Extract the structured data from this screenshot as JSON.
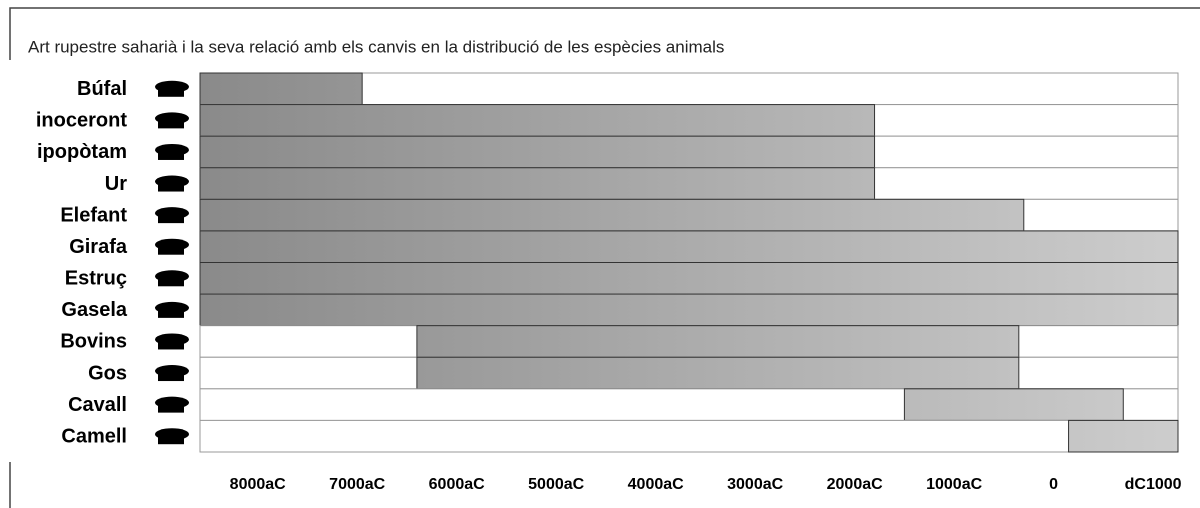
{
  "chart_data": {
    "type": "range-bar",
    "title": "Art rupestre saharià i la seva relació amb els canvis en la distribució de les espècies animals",
    "categories": [
      "Búfal",
      "inoceront",
      "ipopòtam",
      "Ur",
      "Elefant",
      "Girafa",
      "Estruç",
      "Gasela",
      "Bovins",
      "Gos",
      "Cavall",
      "Camell"
    ],
    "values": [
      [
        -8580,
        -6950
      ],
      [
        -8580,
        -1800
      ],
      [
        -8580,
        -1800
      ],
      [
        -8580,
        -1800
      ],
      [
        -8580,
        -300
      ],
      [
        -8580,
        1250
      ],
      [
        -8580,
        1250
      ],
      [
        -8580,
        1250
      ],
      [
        -6400,
        -350
      ],
      [
        -6400,
        -350
      ],
      [
        -1500,
        700
      ],
      [
        150,
        1250
      ]
    ],
    "xlim": [
      -8580,
      1250
    ],
    "xticks": [
      {
        "value": -8000,
        "label": "8000aC"
      },
      {
        "value": -7000,
        "label": "7000aC"
      },
      {
        "value": -6000,
        "label": "6000aC"
      },
      {
        "value": -5000,
        "label": "5000aC"
      },
      {
        "value": -4000,
        "label": "4000aC"
      },
      {
        "value": -3000,
        "label": "3000aC"
      },
      {
        "value": -2000,
        "label": "2000aC"
      },
      {
        "value": -1000,
        "label": "1000aC"
      },
      0,
      {
        "value": 1000,
        "label": "dC1000"
      }
    ],
    "color_start": "#8a8a8a",
    "color_end": "#cdcdcd"
  }
}
